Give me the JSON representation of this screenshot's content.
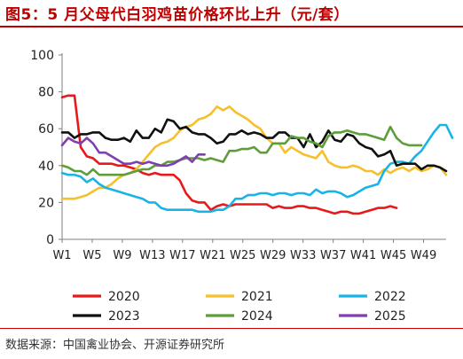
{
  "title": "图5：5 月父母代白羽鸡苗价格环比上升（元/套）",
  "source": "数据来源：中国禽业协会、开源证券研究所",
  "chart_data": {
    "type": "line",
    "ylim": [
      0,
      100
    ],
    "yticks": [
      0,
      20,
      40,
      60,
      80,
      100
    ],
    "xrange": [
      1,
      52
    ],
    "xticks": [
      {
        "week": 1,
        "label": "W1"
      },
      {
        "week": 5,
        "label": "W5"
      },
      {
        "week": 9,
        "label": "W9"
      },
      {
        "week": 13,
        "label": "W13"
      },
      {
        "week": 17,
        "label": "W17"
      },
      {
        "week": 21,
        "label": "W21"
      },
      {
        "week": 25,
        "label": "W25"
      },
      {
        "week": 29,
        "label": "W29"
      },
      {
        "week": 33,
        "label": "W33"
      },
      {
        "week": 37,
        "label": "W37"
      },
      {
        "week": 41,
        "label": "W41"
      },
      {
        "week": 45,
        "label": "W45"
      },
      {
        "week": 49,
        "label": "W49"
      }
    ],
    "grid": false,
    "legend_position": "bottom",
    "series": [
      {
        "name": "2020",
        "color": "#e8191c",
        "values": [
          77,
          78,
          78,
          50,
          45,
          44,
          41,
          41,
          41,
          40,
          40,
          39,
          38,
          36,
          35,
          36,
          35,
          35,
          35,
          32,
          25,
          21,
          20,
          20,
          16,
          18,
          19,
          18,
          19,
          19,
          19,
          19,
          19,
          19,
          17,
          18,
          17,
          17,
          18,
          18,
          17,
          17,
          16,
          15,
          14,
          15,
          15,
          14,
          14,
          15,
          16,
          17,
          17,
          18,
          17
        ]
      },
      {
        "name": "2021",
        "color": "#f5c02c",
        "values": [
          22,
          22,
          22,
          23,
          24,
          26,
          28,
          28,
          30,
          33,
          35,
          36,
          38,
          42,
          46,
          50,
          52,
          53,
          55,
          59,
          61,
          62,
          65,
          66,
          68,
          72,
          70,
          72,
          69,
          67,
          65,
          62,
          60,
          55,
          52,
          52,
          47,
          50,
          48,
          46,
          45,
          44,
          48,
          42,
          40,
          39,
          39,
          40,
          39,
          37,
          37,
          35,
          38,
          36,
          38,
          39,
          37,
          39,
          37,
          38,
          40,
          39,
          35
        ]
      },
      {
        "name": "2022",
        "color": "#19b4e6",
        "values": [
          36,
          35,
          35,
          34,
          31,
          33,
          30,
          28,
          27,
          26,
          25,
          24,
          23,
          22,
          20,
          20,
          17,
          16,
          16,
          16,
          16,
          16,
          15,
          15,
          15,
          16,
          16,
          18,
          22,
          22,
          24,
          24,
          25,
          25,
          24,
          25,
          25,
          24,
          25,
          25,
          24,
          27,
          25,
          26,
          26,
          25,
          23,
          24,
          26,
          28,
          29,
          30,
          37,
          41,
          42,
          42,
          41,
          45,
          48,
          53,
          58,
          62,
          62,
          55
        ]
      },
      {
        "name": "2023",
        "color": "#111111",
        "values": [
          58,
          58,
          55,
          57,
          57,
          58,
          58,
          55,
          54,
          54,
          55,
          53,
          59,
          55,
          55,
          60,
          58,
          65,
          64,
          60,
          61,
          58,
          57,
          57,
          55,
          52,
          53,
          57,
          57,
          59,
          57,
          58,
          57,
          55,
          55,
          58,
          58,
          55,
          55,
          50,
          57,
          50,
          53,
          59,
          54,
          53,
          57,
          56,
          52,
          50,
          49,
          45,
          46,
          48,
          40,
          41,
          41,
          41,
          38,
          40,
          40,
          39,
          37
        ]
      },
      {
        "name": "2024",
        "color": "#5e9e3a",
        "values": [
          40,
          39,
          37,
          37,
          35,
          38,
          35,
          35,
          35,
          35,
          35,
          36,
          37,
          38,
          38,
          40,
          40,
          42,
          42,
          43,
          44,
          44,
          44,
          43,
          44,
          43,
          42,
          48,
          48,
          49,
          49,
          50,
          47,
          47,
          52,
          52,
          52,
          56,
          55,
          55,
          53,
          52,
          50,
          56,
          58,
          58,
          59,
          58,
          57,
          57,
          56,
          55,
          54,
          61,
          55,
          52,
          51,
          51,
          51
        ]
      },
      {
        "name": "2025",
        "color": "#7f3fb0",
        "values": [
          51,
          55,
          53,
          52,
          55,
          52,
          47,
          47,
          45,
          43,
          41,
          41,
          42,
          41,
          42,
          41,
          40,
          40,
          41,
          43,
          45,
          42,
          46,
          46
        ]
      }
    ]
  }
}
